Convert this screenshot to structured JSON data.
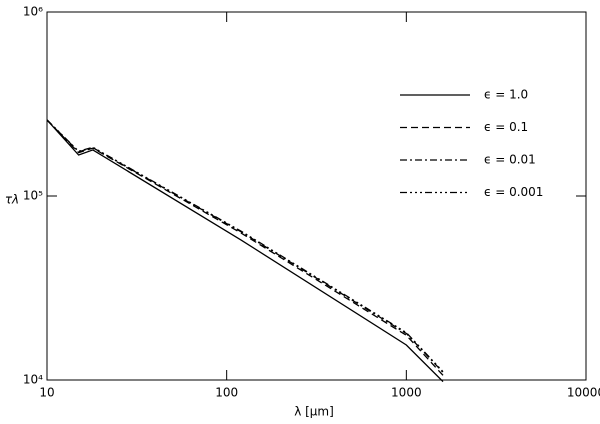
{
  "chart_data": {
    "type": "line",
    "xlabel": "λ  [μm]",
    "ylabel": "τλ",
    "xscale": "log",
    "yscale": "log",
    "xlim": [
      10,
      10000
    ],
    "ylim": [
      10000,
      1000000
    ],
    "xticks": [
      10,
      100,
      1000,
      10000
    ],
    "yticks": [
      {
        "value": 10000,
        "label": "10⁴"
      },
      {
        "value": 100000,
        "label": "10⁵"
      },
      {
        "value": 1000000,
        "label": "10⁶"
      }
    ],
    "x": [
      10,
      15,
      18,
      120,
      1000,
      1600
    ],
    "legend": "upper right",
    "series": [
      {
        "name": "ϵ = 1.0",
        "color": "#000000",
        "dash": "solid",
        "values": [
          259000,
          167000,
          178000,
          57700,
          15500,
          9800
        ]
      },
      {
        "name": "ϵ = 0.1",
        "color": "#000000",
        "dash": "dashed",
        "values": [
          259000,
          172000,
          182000,
          63000,
          17500,
          10600
        ]
      },
      {
        "name": "ϵ = 0.01",
        "color": "#000000",
        "dash": "dashdot",
        "values": [
          259000,
          174000,
          183000,
          64000,
          17900,
          11000
        ]
      },
      {
        "name": "ϵ = 0.001",
        "color": "#000000",
        "dash": "dashdotdotdot",
        "values": [
          259000,
          175000,
          184000,
          64500,
          18100,
          11100
        ]
      }
    ]
  }
}
